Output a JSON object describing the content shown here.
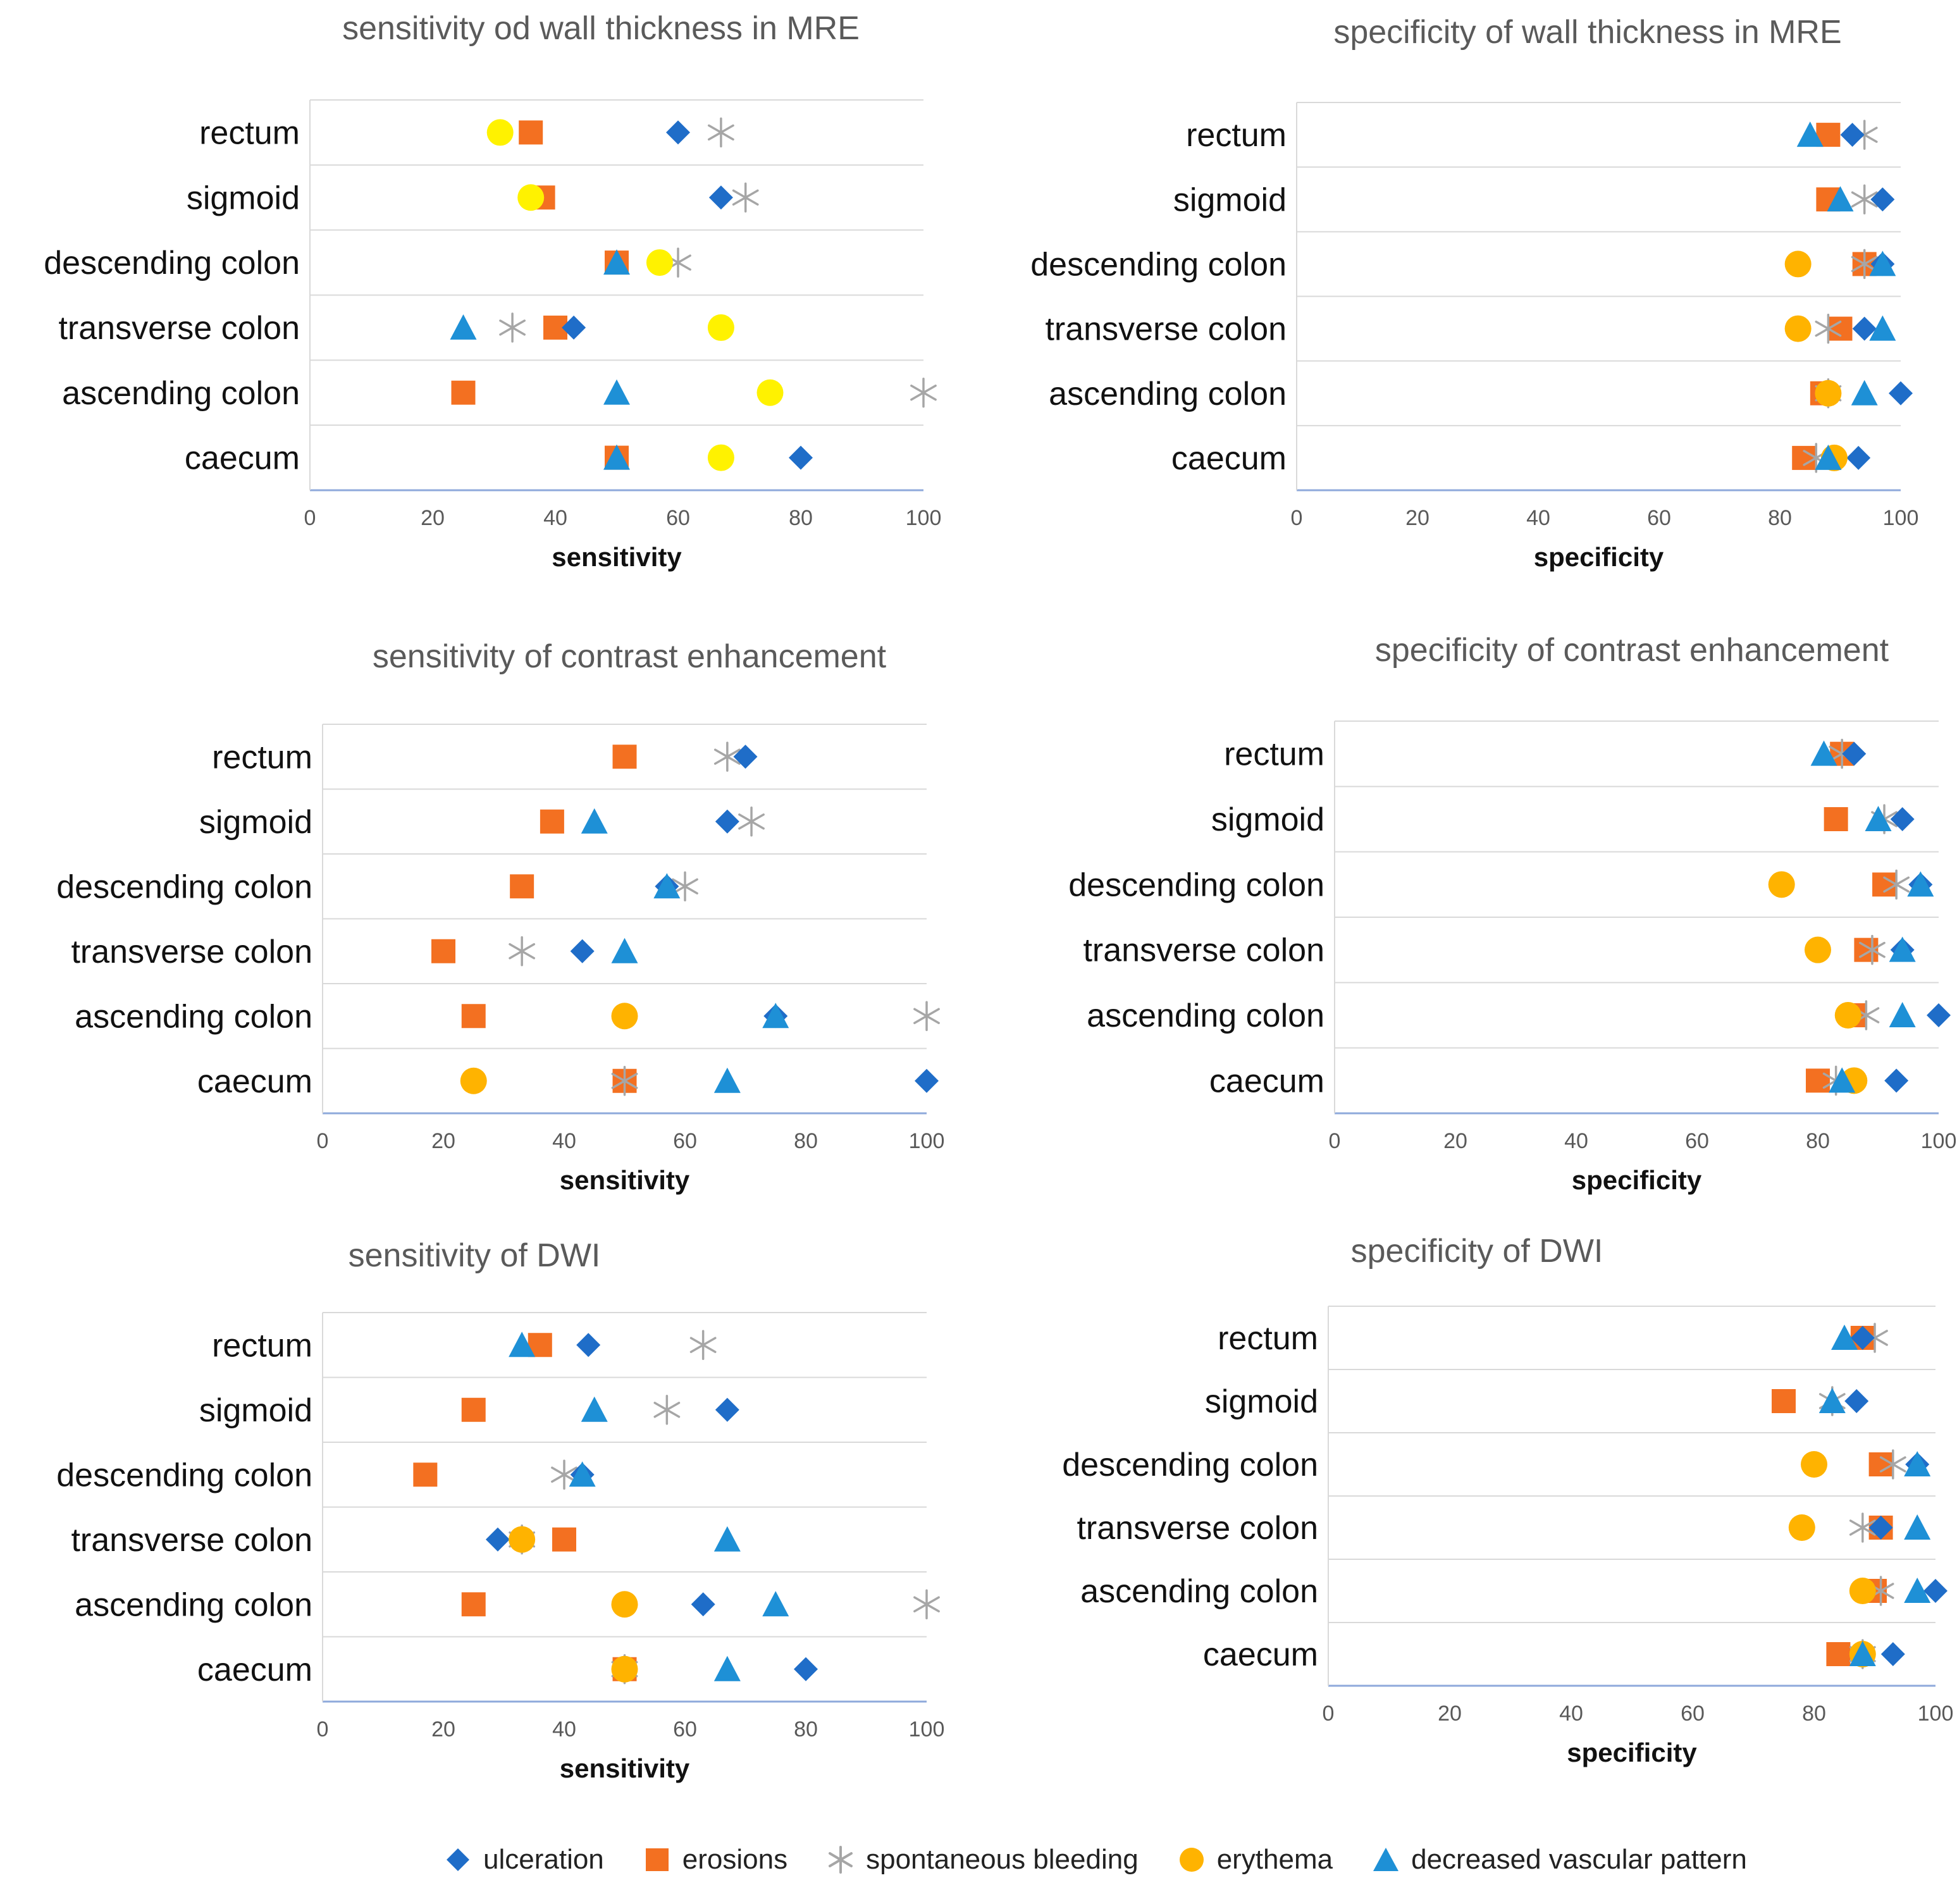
{
  "colors": {
    "ulceration": "#1F6DC8",
    "erosions": "#F37021",
    "spontaneous_bleeding": "#A6A6A6",
    "erythema_yellow": "#FFF200",
    "erythema_orange": "#FFB300",
    "decreased_vascular_pattern": "#1E90D6",
    "title": "#5A5A5A",
    "grid": "#D9D9D9",
    "axis": "#8EA9DB"
  },
  "legend": {
    "ulceration": "ulceration",
    "erosions": "erosions",
    "spontaneous_bleeding": "spontaneous bleeding",
    "erythema": "erythema",
    "decreased_vascular_pattern": "decreased vascular pattern"
  },
  "chart_data": [
    {
      "type": "scatter",
      "title": "sensitivity od wall thickness in MRE",
      "xlabel": "sensitivity",
      "categories": [
        "rectum",
        "sigmoid",
        "descending colon",
        "transverse colon",
        "ascending colon",
        "caecum"
      ],
      "xlim": [
        0,
        100
      ],
      "xticks": [
        "0",
        "20",
        "40",
        "60",
        "80",
        "100"
      ],
      "erythema_color": "yellow",
      "series": [
        {
          "name": "ulceration",
          "values": [
            60,
            67,
            null,
            43,
            null,
            80
          ]
        },
        {
          "name": "erosions",
          "values": [
            36,
            38,
            50,
            40,
            25,
            50
          ]
        },
        {
          "name": "spontaneous bleeding",
          "values": [
            67,
            71,
            60,
            33,
            100,
            null
          ]
        },
        {
          "name": "erythema",
          "values": [
            31,
            36,
            57,
            67,
            75,
            67
          ]
        },
        {
          "name": "decreased vascular pattern",
          "values": [
            null,
            null,
            50,
            25,
            50,
            50
          ]
        }
      ]
    },
    {
      "type": "scatter",
      "title": "specificity of wall thickness in MRE",
      "xlabel": "specificity",
      "categories": [
        "rectum",
        "sigmoid",
        "descending colon",
        "transverse colon",
        "ascending colon",
        "caecum"
      ],
      "xlim": [
        0,
        100
      ],
      "xticks": [
        "0",
        "20",
        "40",
        "60",
        "80",
        "100"
      ],
      "erythema_color": "orange",
      "series": [
        {
          "name": "ulceration",
          "values": [
            92,
            97,
            97,
            94,
            100,
            93
          ]
        },
        {
          "name": "erosions",
          "values": [
            88,
            88,
            94,
            90,
            87,
            84
          ]
        },
        {
          "name": "spontaneous bleeding",
          "values": [
            94,
            94,
            94,
            88,
            88,
            86
          ]
        },
        {
          "name": "erythema",
          "values": [
            null,
            null,
            83,
            83,
            88,
            89
          ]
        },
        {
          "name": "decreased vascular pattern",
          "values": [
            85,
            90,
            97,
            97,
            94,
            88
          ]
        }
      ]
    },
    {
      "type": "scatter",
      "title": "sensitivity of contrast enhancement",
      "xlabel": "sensitivity",
      "categories": [
        "rectum",
        "sigmoid",
        "descending colon",
        "transverse colon",
        "ascending colon",
        "caecum"
      ],
      "xlim": [
        0,
        100
      ],
      "xticks": [
        "0",
        "20",
        "40",
        "60",
        "80",
        "100"
      ],
      "erythema_color": "orange",
      "series": [
        {
          "name": "ulceration",
          "values": [
            70,
            67,
            57,
            43,
            75,
            100
          ]
        },
        {
          "name": "erosions",
          "values": [
            50,
            38,
            33,
            20,
            25,
            50
          ]
        },
        {
          "name": "spontaneous bleeding",
          "values": [
            67,
            71,
            60,
            33,
            100,
            50
          ]
        },
        {
          "name": "erythema",
          "values": [
            null,
            null,
            null,
            null,
            50,
            25
          ]
        },
        {
          "name": "decreased vascular pattern",
          "values": [
            null,
            45,
            57,
            50,
            75,
            67
          ]
        }
      ]
    },
    {
      "type": "scatter",
      "title": "specificity of contrast enhancement",
      "xlabel": "specificity",
      "categories": [
        "rectum",
        "sigmoid",
        "descending colon",
        "transverse colon",
        "ascending colon",
        "caecum"
      ],
      "xlim": [
        0,
        100
      ],
      "xticks": [
        "0",
        "20",
        "40",
        "60",
        "80",
        "100"
      ],
      "erythema_color": "orange",
      "series": [
        {
          "name": "ulceration",
          "values": [
            86,
            94,
            97,
            94,
            100,
            93
          ]
        },
        {
          "name": "erosions",
          "values": [
            84,
            83,
            91,
            88,
            86,
            80
          ]
        },
        {
          "name": "spontaneous bleeding",
          "values": [
            84,
            91,
            93,
            89,
            88,
            83
          ]
        },
        {
          "name": "erythema",
          "values": [
            null,
            null,
            74,
            80,
            85,
            86
          ]
        },
        {
          "name": "decreased vascular pattern",
          "values": [
            81,
            90,
            97,
            94,
            94,
            84
          ]
        }
      ]
    },
    {
      "type": "scatter",
      "title": "sensitivity of DWI",
      "xlabel": "sensitivity",
      "categories": [
        "rectum",
        "sigmoid",
        "descending colon",
        "transverse colon",
        "ascending colon",
        "caecum"
      ],
      "xlim": [
        0,
        100
      ],
      "xticks": [
        "0",
        "20",
        "40",
        "60",
        "80",
        "100"
      ],
      "erythema_color": "orange",
      "series": [
        {
          "name": "ulceration",
          "values": [
            44,
            67,
            43,
            29,
            63,
            80
          ]
        },
        {
          "name": "erosions",
          "values": [
            36,
            25,
            17,
            40,
            25,
            50
          ]
        },
        {
          "name": "spontaneous bleeding",
          "values": [
            63,
            57,
            40,
            33,
            100,
            50
          ]
        },
        {
          "name": "erythema",
          "values": [
            null,
            null,
            null,
            33,
            50,
            50
          ]
        },
        {
          "name": "decreased vascular pattern",
          "values": [
            33,
            45,
            43,
            67,
            75,
            67
          ]
        }
      ]
    },
    {
      "type": "scatter",
      "title": "specificity of DWI",
      "xlabel": "specificity",
      "categories": [
        "rectum",
        "sigmoid",
        "descending colon",
        "transverse colon",
        "ascending colon",
        "caecum"
      ],
      "xlim": [
        0,
        100
      ],
      "xticks": [
        "0",
        "20",
        "40",
        "60",
        "80",
        "100"
      ],
      "erythema_color": "orange",
      "series": [
        {
          "name": "ulceration",
          "values": [
            88,
            87,
            97,
            91,
            100,
            93
          ]
        },
        {
          "name": "erosions",
          "values": [
            88,
            75,
            91,
            91,
            90,
            84
          ]
        },
        {
          "name": "spontaneous bleeding",
          "values": [
            90,
            83,
            93,
            88,
            91,
            88
          ]
        },
        {
          "name": "erythema",
          "values": [
            null,
            null,
            80,
            78,
            88,
            88
          ]
        },
        {
          "name": "decreased vascular pattern",
          "values": [
            85,
            83,
            97,
            97,
            97,
            88
          ]
        }
      ]
    }
  ]
}
